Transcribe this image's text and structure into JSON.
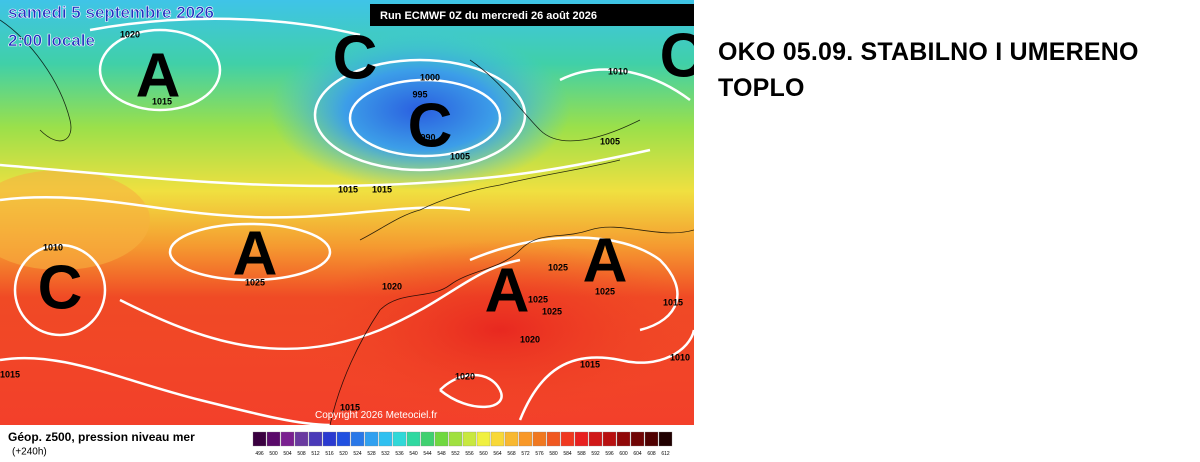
{
  "map": {
    "date": "samedi 5 septembre 2026",
    "time": "2:00 locale",
    "run": "Run ECMWF 0Z du mercredi 26 août 2026",
    "copyright": "Copyright 2026 Meteociel.fr",
    "legend_title": "Géop. z500, pression niveau mer",
    "lead_time": "(+240h)",
    "legend_labels": [
      "496",
      "500",
      "504",
      "508",
      "512",
      "516",
      "520",
      "524",
      "528",
      "532",
      "536",
      "540",
      "544",
      "548",
      "552",
      "556",
      "560",
      "564",
      "568",
      "572",
      "576",
      "580",
      "584",
      "588",
      "592",
      "596",
      "600",
      "604",
      "608",
      "612"
    ],
    "pressure_centers": [
      "A",
      "C",
      "C",
      "C",
      "A",
      "C",
      "A",
      "A"
    ],
    "pressure_labels": [
      "1020",
      "1015",
      "1000",
      "995",
      "990",
      "1005",
      "1010",
      "1005",
      "1015",
      "1015",
      "1010",
      "1025",
      "1020",
      "1025",
      "1025",
      "1025",
      "1025",
      "1020",
      "1015",
      "1015",
      "1010",
      "1015",
      "1020",
      "1015"
    ]
  },
  "headline": "OKO 05.09. STABILNO I UMERENO TOPLO"
}
